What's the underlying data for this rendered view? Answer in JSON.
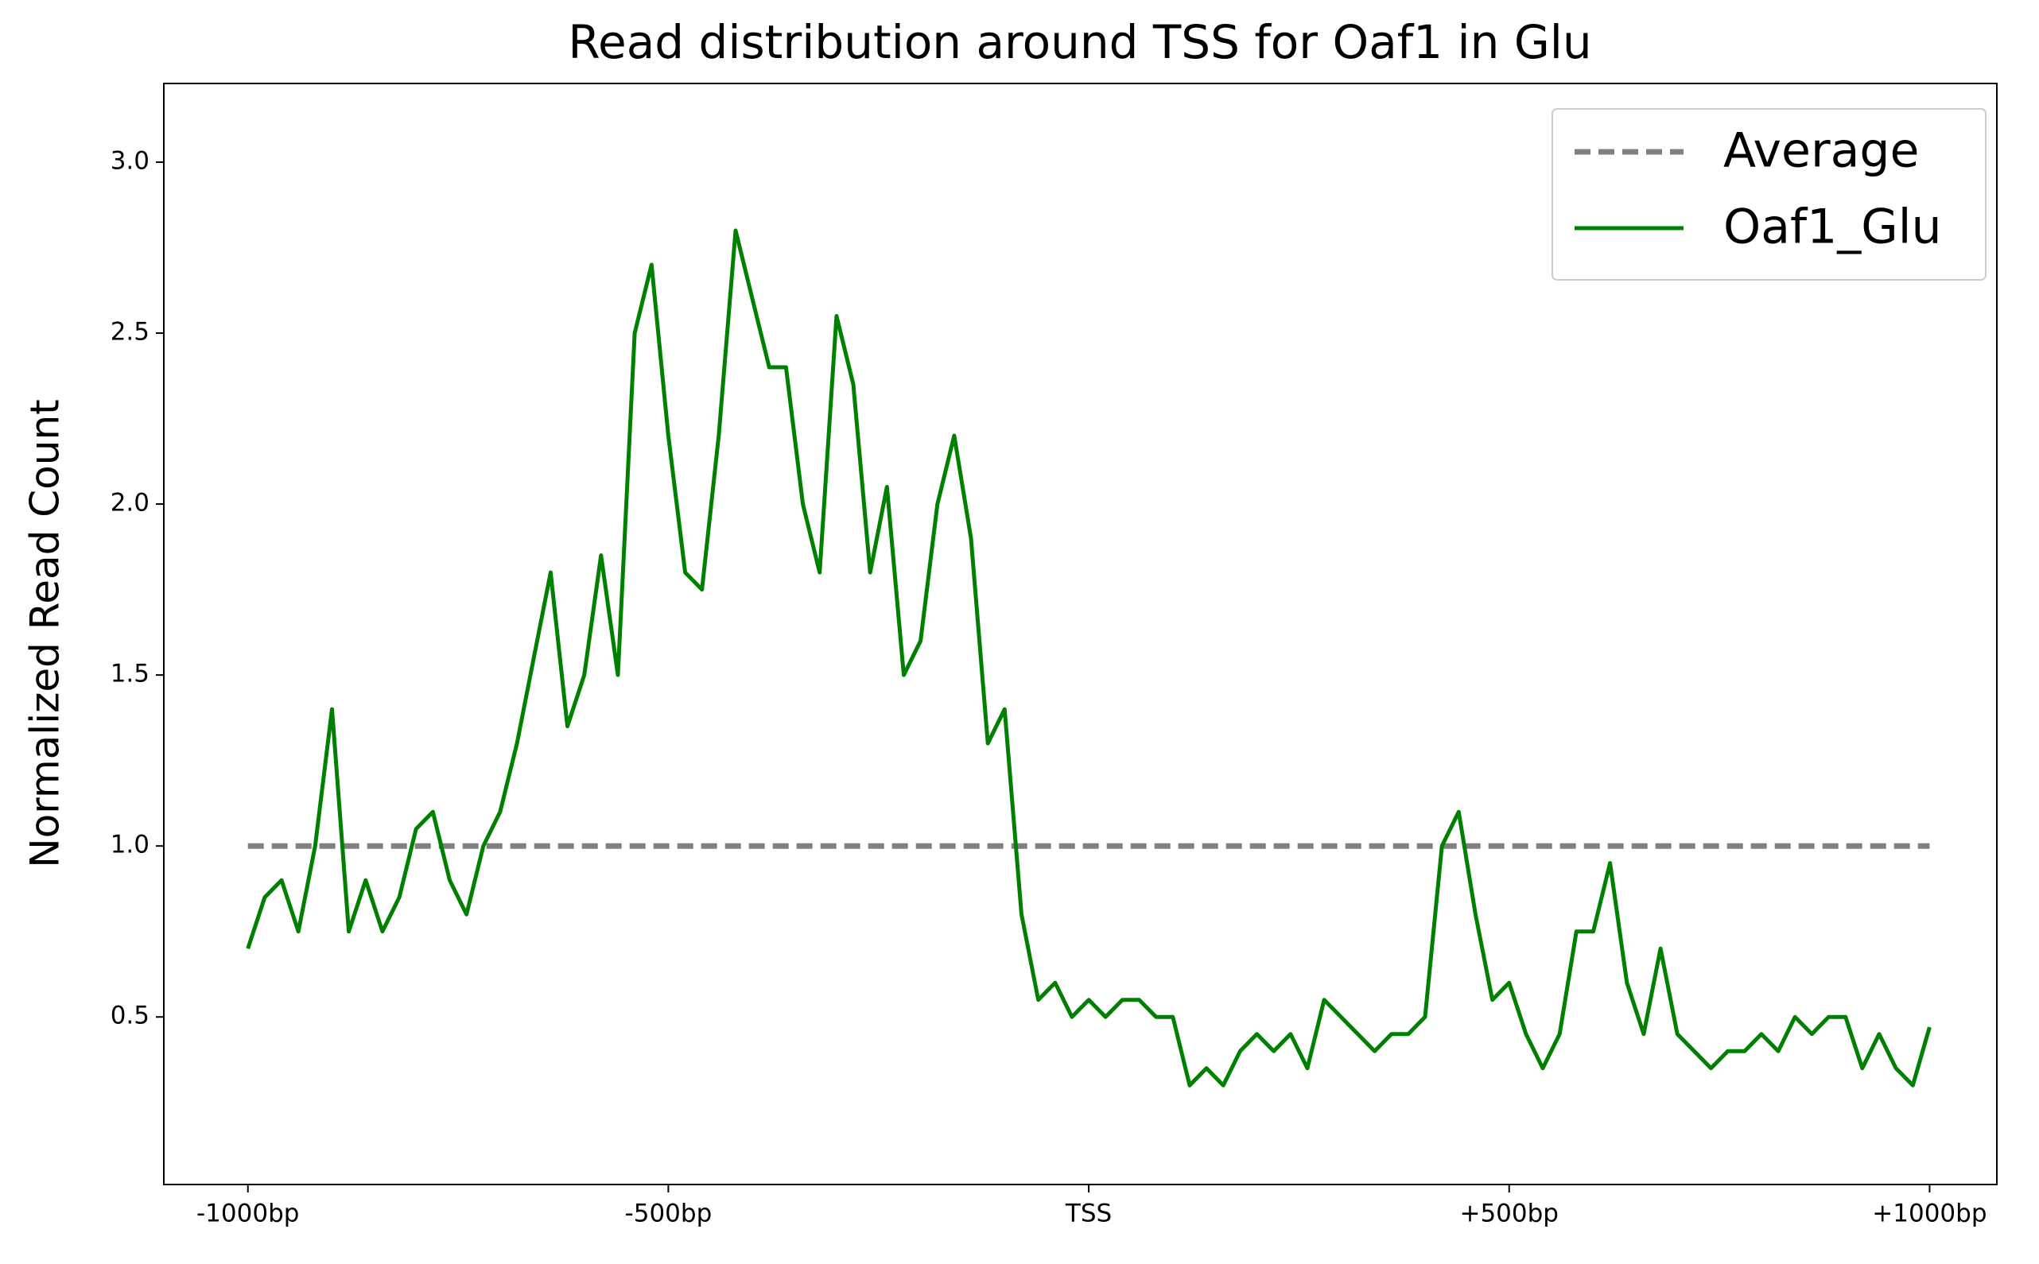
{
  "chart_data": {
    "type": "line",
    "title": "Read distribution around TSS for Oaf1 in Glu",
    "ylabel": "Normalized Read Count",
    "xlim": [
      -1100,
      1080
    ],
    "ylim": [
      0.01,
      3.23
    ],
    "xticks": [
      {
        "value": -1000,
        "label": "-1000bp"
      },
      {
        "value": -500,
        "label": "-500bp"
      },
      {
        "value": 0,
        "label": "TSS"
      },
      {
        "value": 500,
        "label": "+500bp"
      },
      {
        "value": 1000,
        "label": "+1000bp"
      }
    ],
    "yticks": [
      0.5,
      {
        "value": 1,
        "label": "1.0"
      },
      1.5,
      {
        "value": 2,
        "label": "2.0"
      },
      2.5,
      {
        "value": 3,
        "label": "3.0"
      }
    ],
    "grid": false,
    "legend": "upper right",
    "series": [
      {
        "name": "Average",
        "color": "#808080",
        "style": "dashed",
        "x": [
          -1000,
          1000
        ],
        "values": [
          1,
          1
        ]
      },
      {
        "name": "Oaf1_Glu",
        "color": "#008000",
        "style": "solid",
        "x": [
          -1000,
          -980,
          -960,
          -940,
          -920,
          -900,
          -880,
          -860,
          -840,
          -820,
          -800,
          -780,
          -760,
          -740,
          -720,
          -700,
          -680,
          -660,
          -640,
          -620,
          -600,
          -580,
          -560,
          -540,
          -520,
          -500,
          -480,
          -460,
          -440,
          -420,
          -400,
          -380,
          -360,
          -340,
          -320,
          -300,
          -280,
          -260,
          -240,
          -220,
          -200,
          -180,
          -160,
          -140,
          -120,
          -100,
          -80,
          -60,
          -40,
          -20,
          0,
          20,
          40,
          60,
          80,
          100,
          120,
          140,
          160,
          180,
          200,
          220,
          240,
          260,
          280,
          300,
          320,
          340,
          360,
          380,
          400,
          420,
          440,
          460,
          480,
          500,
          520,
          540,
          560,
          580,
          600,
          620,
          640,
          660,
          680,
          700,
          720,
          740,
          760,
          780,
          800,
          820,
          840,
          860,
          880,
          900,
          920,
          940,
          960,
          980,
          1000
        ],
        "values": [
          0.7,
          0.85,
          0.9,
          0.75,
          1.0,
          1.4,
          0.75,
          0.9,
          0.75,
          0.85,
          1.05,
          1.1,
          0.9,
          0.8,
          1.0,
          1.1,
          1.3,
          1.55,
          1.8,
          1.35,
          1.5,
          1.85,
          1.5,
          2.5,
          2.7,
          2.2,
          1.8,
          1.75,
          2.2,
          2.8,
          2.6,
          2.4,
          2.4,
          2.0,
          1.8,
          2.55,
          2.35,
          1.8,
          2.05,
          1.5,
          1.6,
          2.0,
          2.2,
          1.9,
          1.3,
          1.4,
          0.8,
          0.55,
          0.6,
          0.5,
          0.55,
          0.5,
          0.55,
          0.55,
          0.5,
          0.5,
          0.3,
          0.35,
          0.3,
          0.4,
          0.45,
          0.4,
          0.45,
          0.35,
          0.55,
          0.5,
          0.45,
          0.4,
          0.45,
          0.45,
          0.5,
          1.0,
          1.1,
          0.8,
          0.55,
          0.6,
          0.45,
          0.35,
          0.45,
          0.75,
          0.75,
          0.95,
          0.6,
          0.45,
          0.7,
          0.45,
          0.4,
          0.35,
          0.4,
          0.4,
          0.45,
          0.4,
          0.5,
          0.45,
          0.5,
          0.5,
          0.35,
          0.45,
          0.35,
          0.3,
          0.47
        ]
      }
    ]
  }
}
